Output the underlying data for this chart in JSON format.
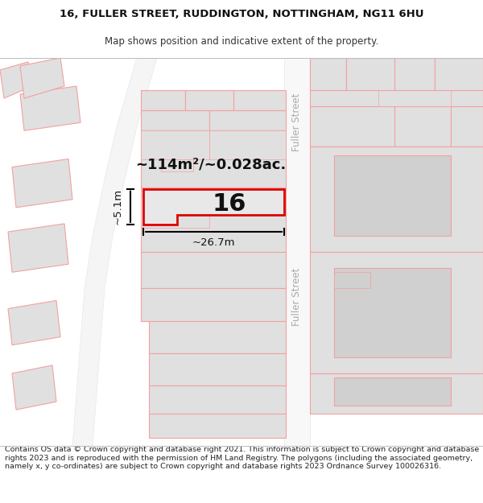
{
  "title_line1": "16, FULLER STREET, RUDDINGTON, NOTTINGHAM, NG11 6HU",
  "title_line2": "Map shows position and indicative extent of the property.",
  "footer_text": "Contains OS data © Crown copyright and database right 2021. This information is subject to Crown copyright and database rights 2023 and is reproduced with the permission of HM Land Registry. The polygons (including the associated geometry, namely x, y co-ordinates) are subject to Crown copyright and database rights 2023 Ordnance Survey 100026316.",
  "background_color": "#ffffff",
  "map_bg": "#ffffff",
  "poly_fill": "#e0e0e0",
  "poly_edge": "#f5a0a0",
  "road_fill": "#ffffff",
  "highlight_edge": "#dd0000",
  "highlight_fill": "#e8e8e8",
  "label_16": "16",
  "area_label": "~114m²/~0.028ac.",
  "dim_width": "~26.7m",
  "dim_height": "~5.1m",
  "street_label": "Fuller Street",
  "title_fontsize": 9.5,
  "subtitle_fontsize": 8.5,
  "footer_fontsize": 6.8
}
